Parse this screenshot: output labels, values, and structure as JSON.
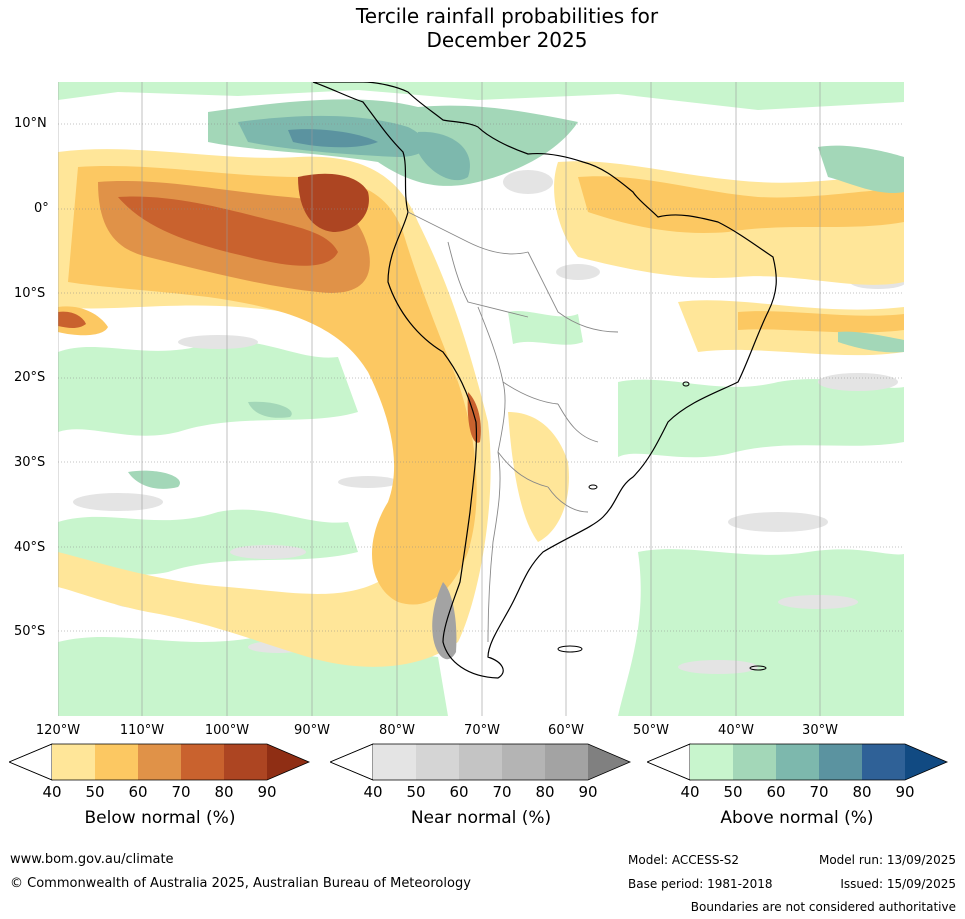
{
  "title_line1": "Tercile rainfall probabilities for",
  "title_line2": "December 2025",
  "lat_labels": [
    "10°N",
    "0°",
    "10°S",
    "20°S",
    "30°S",
    "40°S",
    "50°S"
  ],
  "lon_labels": [
    "120°W",
    "110°W",
    "100°W",
    "90°W",
    "80°W",
    "70°W",
    "60°W",
    "50°W",
    "40°W",
    "30°W"
  ],
  "colorbars": [
    {
      "label": "Below normal (%)",
      "ticks": [
        "40",
        "50",
        "60",
        "70",
        "80",
        "90"
      ],
      "colors": [
        "#ffe699",
        "#fcc862",
        "#e09248",
        "#c9622e",
        "#ad4522",
        "#8f2e14"
      ]
    },
    {
      "label": "Near normal (%)",
      "ticks": [
        "40",
        "50",
        "60",
        "70",
        "80",
        "90"
      ],
      "colors": [
        "#e4e4e4",
        "#d5d5d5",
        "#c4c4c4",
        "#b4b4b4",
        "#a3a3a3",
        "#808080"
      ]
    },
    {
      "label": "Above normal (%)",
      "ticks": [
        "40",
        "50",
        "60",
        "70",
        "80",
        "90"
      ],
      "colors": [
        "#c8f5cd",
        "#a3d7b8",
        "#7db8ad",
        "#5b93a0",
        "#2f6197",
        "#114a82"
      ]
    }
  ],
  "footer": {
    "website": "www.bom.gov.au/climate",
    "copyright": "© Commonwealth of Australia 2025, Australian Bureau of Meteorology",
    "model": "Model: ACCESS-S2",
    "base_period": "Base period: 1981-2018",
    "model_run": "Model run: 13/09/2025",
    "issued": "Issued: 15/09/2025",
    "disclaimer": "Boundaries are not considered authoritative"
  }
}
